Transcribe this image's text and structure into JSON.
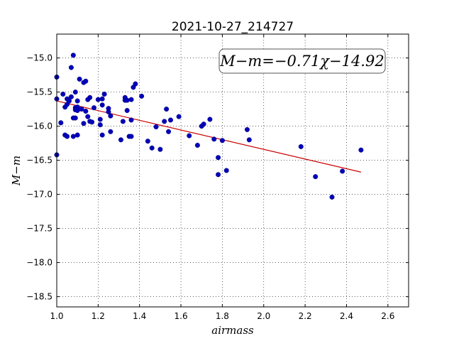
{
  "chart_data": {
    "type": "scatter",
    "title": "2021-10-27_214727",
    "xlabel": "airmass",
    "ylabel": "M−m",
    "xlim": [
      1.0,
      2.7
    ],
    "ylim": [
      -18.65,
      -14.65
    ],
    "y_inverted": true,
    "grid": true,
    "grid_style": "dotted",
    "xticks": [
      "1.0",
      "1.2",
      "1.4",
      "1.6",
      "1.8",
      "2.0",
      "2.2",
      "2.4",
      "2.6"
    ],
    "yticks": [
      "−15.0",
      "−15.5",
      "−16.0",
      "−16.5",
      "−17.0",
      "−17.5",
      "−18.0",
      "−18.5"
    ],
    "annotation": "M−m=−0.71χ−14.92",
    "fit_line": {
      "slope": -0.71,
      "intercept": -14.92,
      "x_range": [
        1.0,
        2.47
      ],
      "color": "#cc0000"
    },
    "point_color": "#0000bb",
    "points": [
      [
        1.0,
        -15.28
      ],
      [
        1.0,
        -15.6
      ],
      [
        1.0,
        -16.42
      ],
      [
        1.02,
        -15.95
      ],
      [
        1.03,
        -15.53
      ],
      [
        1.04,
        -16.13
      ],
      [
        1.04,
        -15.72
      ],
      [
        1.05,
        -15.68
      ],
      [
        1.05,
        -16.15
      ],
      [
        1.05,
        -15.6
      ],
      [
        1.06,
        -15.63
      ],
      [
        1.07,
        -15.14
      ],
      [
        1.07,
        -15.57
      ],
      [
        1.08,
        -14.96
      ],
      [
        1.08,
        -15.88
      ],
      [
        1.08,
        -16.15
      ],
      [
        1.09,
        -15.5
      ],
      [
        1.09,
        -15.73
      ],
      [
        1.09,
        -15.88
      ],
      [
        1.09,
        -15.76
      ],
      [
        1.1,
        -15.63
      ],
      [
        1.1,
        -15.72
      ],
      [
        1.1,
        -15.77
      ],
      [
        1.1,
        -16.13
      ],
      [
        1.11,
        -15.31
      ],
      [
        1.12,
        -15.75
      ],
      [
        1.13,
        -15.96
      ],
      [
        1.13,
        -15.36
      ],
      [
        1.14,
        -15.34
      ],
      [
        1.14,
        -15.78
      ],
      [
        1.15,
        -15.86
      ],
      [
        1.15,
        -15.61
      ],
      [
        1.16,
        -15.58
      ],
      [
        1.16,
        -15.93
      ],
      [
        1.17,
        -15.94
      ],
      [
        1.18,
        -15.73
      ],
      [
        1.2,
        -15.61
      ],
      [
        1.21,
        -15.98
      ],
      [
        1.21,
        -15.9
      ],
      [
        1.22,
        -16.13
      ],
      [
        1.22,
        -15.69
      ],
      [
        1.22,
        -15.6
      ],
      [
        1.23,
        -15.53
      ],
      [
        1.25,
        -15.74
      ],
      [
        1.25,
        -15.79
      ],
      [
        1.26,
        -16.08
      ],
      [
        1.26,
        -15.85
      ],
      [
        1.31,
        -16.2
      ],
      [
        1.32,
        -15.93
      ],
      [
        1.33,
        -15.62
      ],
      [
        1.33,
        -15.58
      ],
      [
        1.34,
        -15.77
      ],
      [
        1.34,
        -15.62
      ],
      [
        1.35,
        -16.15
      ],
      [
        1.36,
        -15.61
      ],
      [
        1.36,
        -15.91
      ],
      [
        1.36,
        -16.15
      ],
      [
        1.37,
        -15.43
      ],
      [
        1.38,
        -15.38
      ],
      [
        1.41,
        -15.56
      ],
      [
        1.44,
        -16.22
      ],
      [
        1.46,
        -16.32
      ],
      [
        1.48,
        -16.01
      ],
      [
        1.5,
        -16.34
      ],
      [
        1.52,
        -15.93
      ],
      [
        1.53,
        -15.75
      ],
      [
        1.54,
        -16.08
      ],
      [
        1.55,
        -15.91
      ],
      [
        1.59,
        -15.86
      ],
      [
        1.64,
        -16.14
      ],
      [
        1.68,
        -16.28
      ],
      [
        1.7,
        -16.0
      ],
      [
        1.71,
        -15.97
      ],
      [
        1.74,
        -15.9
      ],
      [
        1.76,
        -16.19
      ],
      [
        1.78,
        -16.71
      ],
      [
        1.78,
        -16.46
      ],
      [
        1.8,
        -16.21
      ],
      [
        1.82,
        -16.65
      ],
      [
        1.92,
        -16.05
      ],
      [
        1.93,
        -16.2
      ],
      [
        2.18,
        -16.3
      ],
      [
        2.25,
        -16.74
      ],
      [
        2.33,
        -17.04
      ],
      [
        2.38,
        -16.66
      ],
      [
        2.47,
        -16.35
      ]
    ]
  }
}
